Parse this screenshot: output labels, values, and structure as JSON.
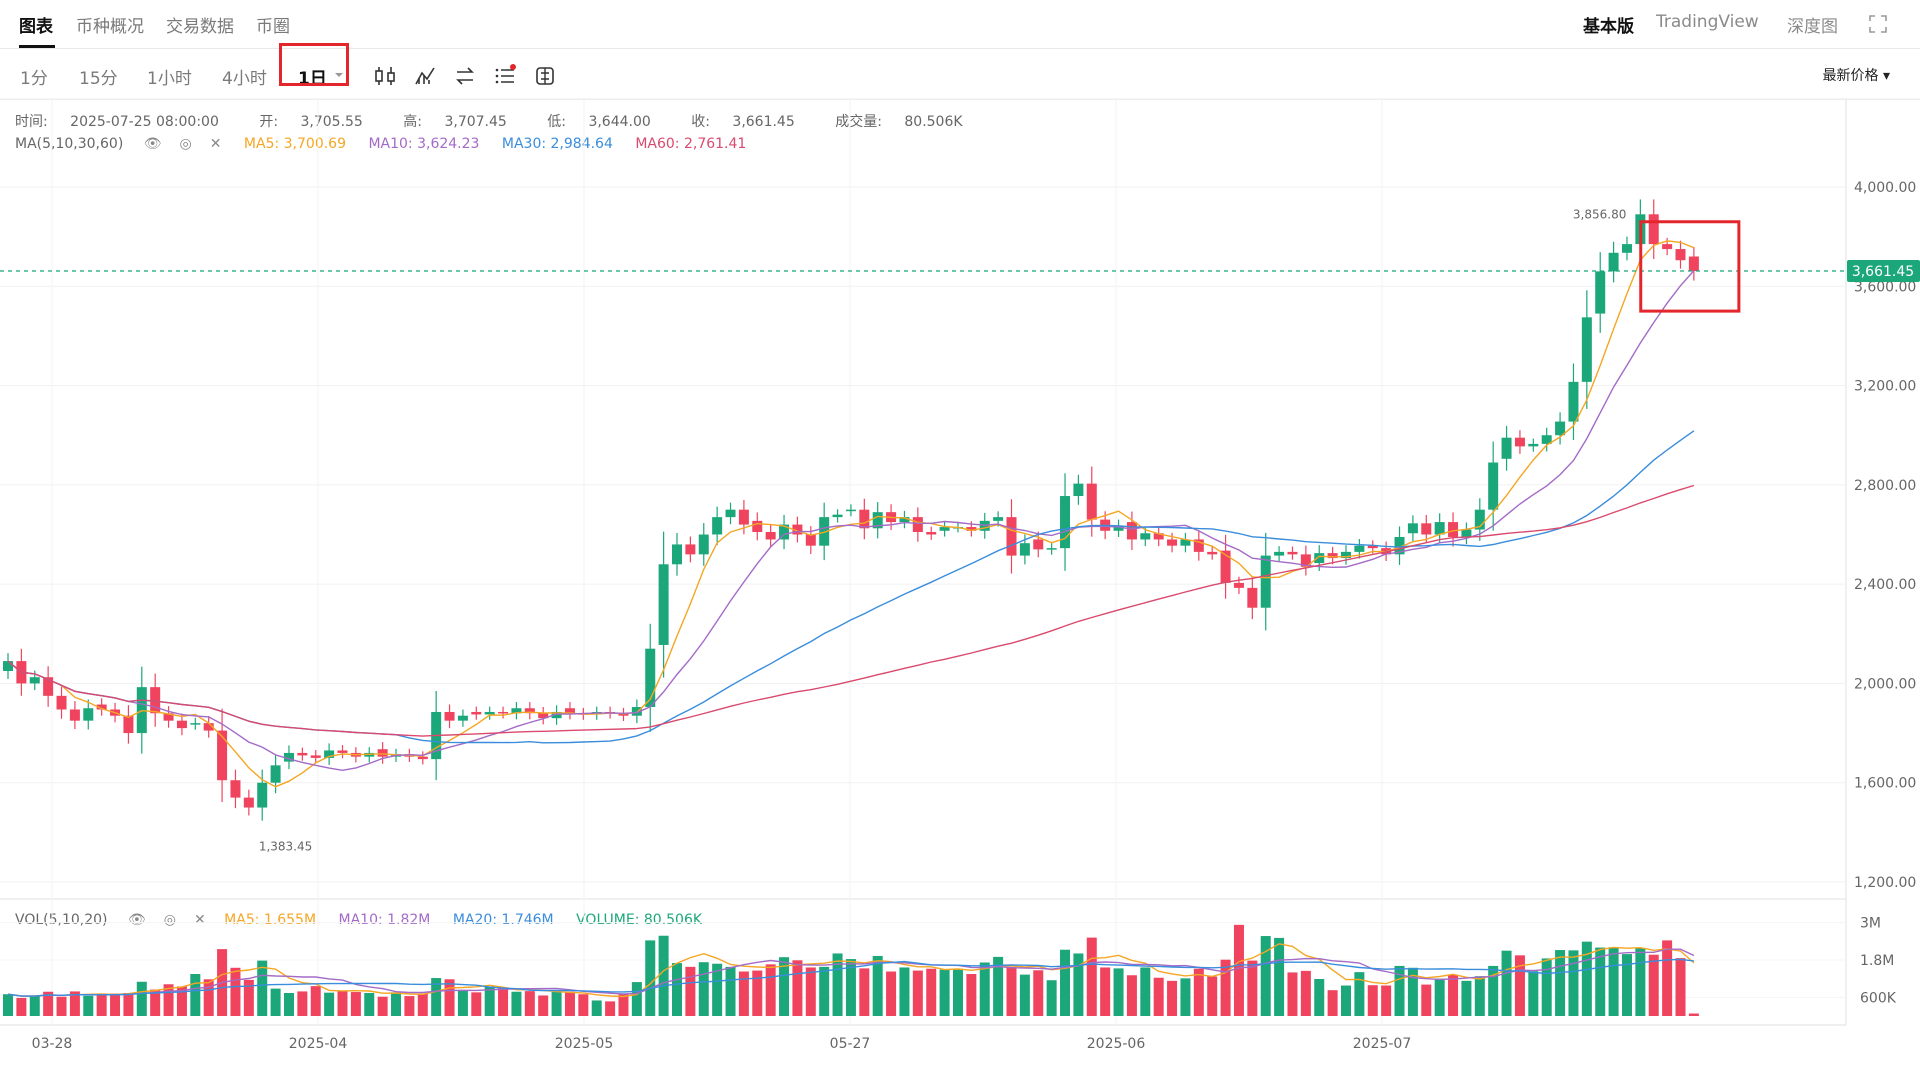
{
  "tabs": [
    "图表",
    "币种概况",
    "交易数据",
    "币圈"
  ],
  "right_tabs": [
    "基本版",
    "TradingView",
    "深度图"
  ],
  "timeframes": [
    "1分",
    "15分",
    "1小时",
    "4小时",
    "1日"
  ],
  "price_mode": "最新价格",
  "ohlc": {
    "time_label": "时间:",
    "time": "2025-07-25 08:00:00",
    "open_label": "开:",
    "open": "3,705.55",
    "high_label": "高:",
    "high": "3,707.45",
    "low_label": "低:",
    "low": "3,644.00",
    "close_label": "收:",
    "close": "3,661.45",
    "vol_label": "成交量:",
    "vol": "80.506K"
  },
  "ma_legend": {
    "title": "MA(5,10,30,60)",
    "ma5": "MA5: 3,700.69",
    "ma10": "MA10: 3,624.23",
    "ma30": "MA30: 2,984.64",
    "ma60": "MA60: 2,761.41"
  },
  "vol_legend": {
    "title": "VOL(5,10,20)",
    "ma5": "MA5: 1.655M",
    "ma10": "MA10: 1.82M",
    "ma20": "MA20: 1.746M",
    "volume": "VOLUME: 80.506K"
  },
  "colors": {
    "up": "#1ca77a",
    "down": "#f0435e",
    "ma5": "#f5a623",
    "ma10": "#a36bc7",
    "ma30": "#3a8ddc",
    "ma60": "#d94a6e",
    "vol_line": "#1ca77a"
  },
  "chart_data": {
    "type": "candlestick",
    "price_axis_ticks": [
      "4,000.00",
      "3,600.00",
      "3,200.00",
      "2,800.00",
      "2,400.00",
      "2,000.00",
      "1,600.00",
      "1,200.00"
    ],
    "price_range": [
      1200,
      4000
    ],
    "volume_axis_ticks": [
      "3M",
      "1.8M",
      "600K"
    ],
    "volume_range": [
      0,
      3600000
    ],
    "x_tick_labels": [
      "03-28",
      "2025-04",
      "2025-05",
      "05-27",
      "2025-06",
      "2025-07"
    ],
    "last_price_label": "3,661.45",
    "last_price": 3661.45,
    "max_label": "3,856.80",
    "max_price": 3856.8,
    "min_label": "1,383.45",
    "min_price": 1383.45,
    "close": [
      2090,
      2000,
      2025,
      1950,
      1895,
      1850,
      1900,
      1895,
      1870,
      1800,
      1985,
      1880,
      1850,
      1820,
      1840,
      1810,
      1610,
      1540,
      1500,
      1600,
      1670,
      1720,
      1710,
      1700,
      1730,
      1720,
      1705,
      1720,
      1705,
      1715,
      1705,
      1695,
      1885,
      1850,
      1870,
      1875,
      1885,
      1880,
      1900,
      1880,
      1860,
      1885,
      1880,
      1875,
      1885,
      1880,
      1870,
      1905,
      2140,
      2480,
      2560,
      2520,
      2600,
      2670,
      2700,
      2640,
      2610,
      2580,
      2640,
      2600,
      2555,
      2670,
      2680,
      2700,
      2625,
      2690,
      2650,
      2670,
      2610,
      2600,
      2630,
      2630,
      2615,
      2655,
      2670,
      2515,
      2565,
      2540,
      2545,
      2755,
      2805,
      2660,
      2615,
      2635,
      2580,
      2605,
      2580,
      2555,
      2580,
      2530,
      2520,
      2405,
      2385,
      2305,
      2515,
      2530,
      2520,
      2470,
      2525,
      2505,
      2530,
      2555,
      2545,
      2520,
      2590,
      2645,
      2600,
      2650,
      2590,
      2620,
      2700,
      2890,
      2990,
      2955,
      2965,
      3000,
      3055,
      3215,
      3475,
      3660,
      3735,
      3770,
      3890,
      3770,
      3750,
      3705,
      3661.45
    ],
    "volume": [
      700000,
      580000,
      640000,
      780000,
      620000,
      790000,
      650000,
      690000,
      720000,
      740000,
      1100000,
      850000,
      1020000,
      950000,
      1350000,
      1180000,
      2150000,
      1550000,
      1160000,
      1780000,
      880000,
      740000,
      790000,
      960000,
      750000,
      790000,
      770000,
      740000,
      620000,
      760000,
      640000,
      720000,
      1220000,
      1180000,
      820000,
      760000,
      950000,
      920000,
      780000,
      800000,
      660000,
      770000,
      780000,
      700000,
      500000,
      470000,
      690000,
      1090000,
      2430000,
      2580000,
      1700000,
      1580000,
      1730000,
      1680000,
      1580000,
      1430000,
      1460000,
      1660000,
      1890000,
      1790000,
      1560000,
      1580000,
      2010000,
      1830000,
      1530000,
      1930000,
      1430000,
      1560000,
      1460000,
      1520000,
      1490000,
      1520000,
      1350000,
      1720000,
      1900000,
      1580000,
      1330000,
      1470000,
      1150000,
      2130000,
      2010000,
      2520000,
      1560000,
      1530000,
      1310000,
      1560000,
      1230000,
      1130000,
      1210000,
      1520000,
      1270000,
      1810000,
      2930000,
      1780000,
      2570000,
      2510000,
      1400000,
      1450000,
      1190000,
      830000,
      980000,
      1410000,
      990000,
      980000,
      1610000,
      1550000,
      1010000,
      1200000,
      1330000,
      1130000,
      1280000,
      1610000,
      2100000,
      1950000,
      1440000,
      1850000,
      2120000,
      2110000,
      2390000,
      2200000,
      2210000,
      1990000,
      2190000,
      1970000,
      2430000,
      1860000,
      80506
    ]
  }
}
